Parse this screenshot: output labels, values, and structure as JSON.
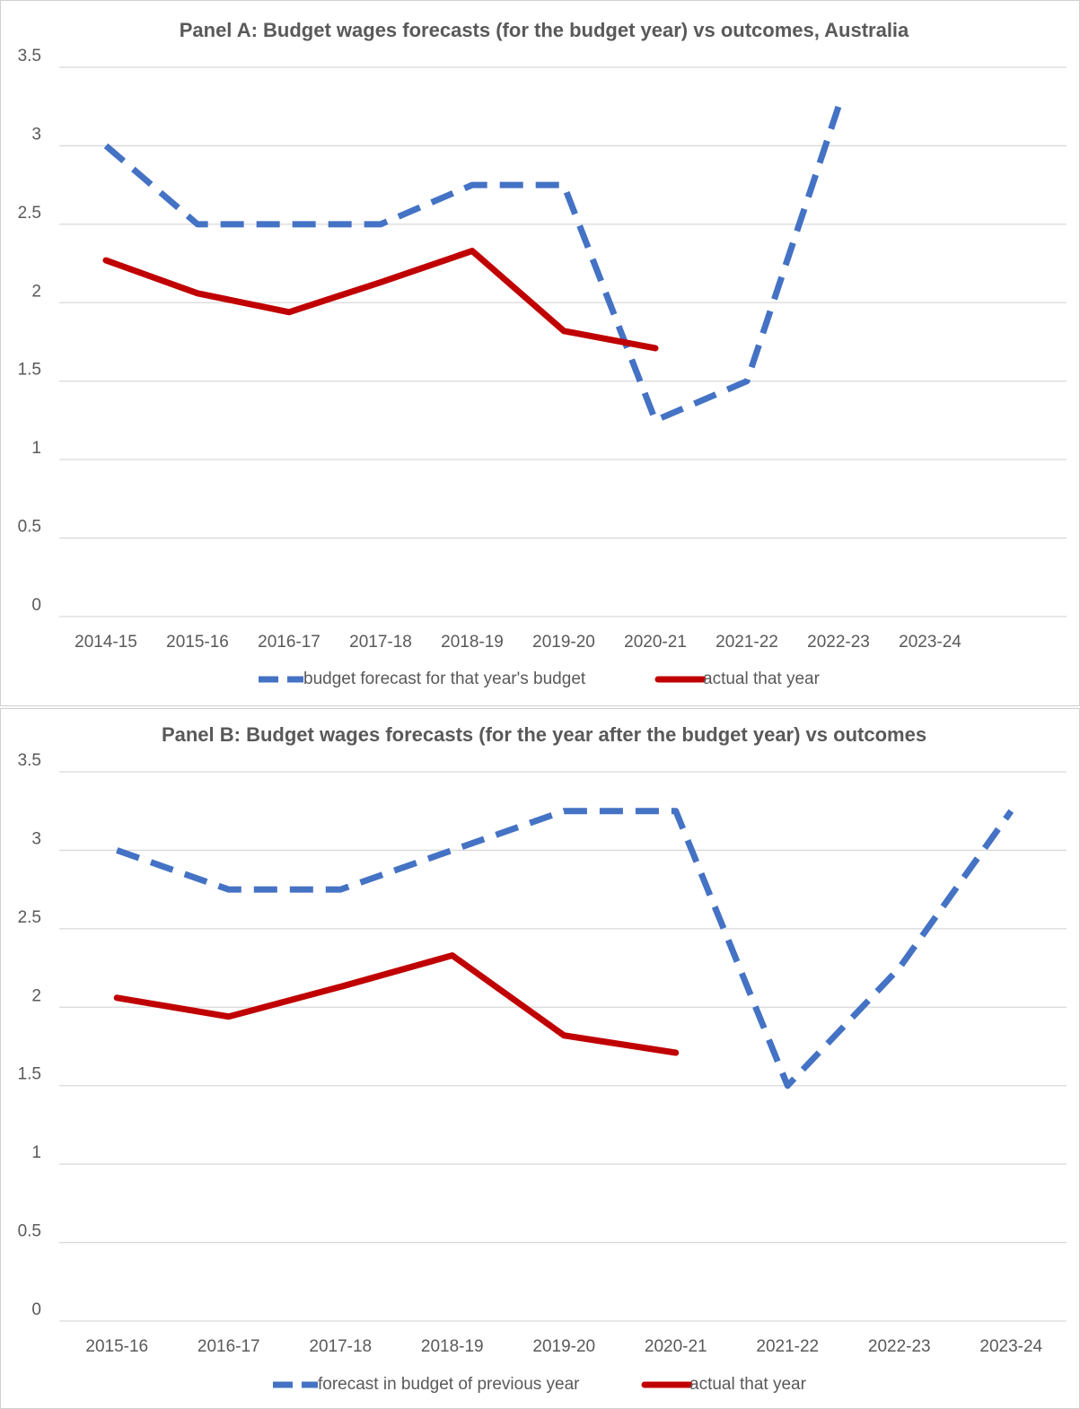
{
  "chart_data": [
    {
      "type": "line",
      "title": "Panel A: Budget wages forecasts (for the budget year) vs outcomes, Australia",
      "categories": [
        "2014-15",
        "2015-16",
        "2016-17",
        "2017-18",
        "2018-19",
        "2019-20",
        "2020-21",
        "2021-22",
        "2022-23",
        "2023-24"
      ],
      "series": [
        {
          "name": "budget forecast for that year's budget",
          "color": "#4472c4",
          "dashed": true,
          "values": [
            3,
            2.5,
            2.5,
            2.5,
            2.75,
            2.75,
            1.25,
            1.5,
            3.25,
            null
          ]
        },
        {
          "name": "actual that year",
          "color": "#c00000",
          "dashed": false,
          "values": [
            2.27,
            2.06,
            1.94,
            2.13,
            2.33,
            1.82,
            1.71,
            null,
            null,
            null
          ]
        }
      ],
      "ylim": [
        0,
        3.5
      ],
      "yticks": [
        0,
        0.5,
        1,
        1.5,
        2,
        2.5,
        3,
        3.5
      ],
      "grid": true,
      "legend": "bottom"
    },
    {
      "type": "line",
      "title": "Panel B: Budget wages forecasts (for the year after the budget year) vs outcomes",
      "categories": [
        "2015-16",
        "2016-17",
        "2017-18",
        "2018-19",
        "2019-20",
        "2020-21",
        "2021-22",
        "2022-23",
        "2023-24"
      ],
      "series": [
        {
          "name": "forecast in budget of previous year",
          "color": "#4472c4",
          "dashed": true,
          "values": [
            3,
            2.75,
            2.75,
            3,
            3.25,
            3.25,
            1.5,
            2.25,
            3.25
          ]
        },
        {
          "name": "actual that year",
          "color": "#c00000",
          "dashed": false,
          "values": [
            2.06,
            1.94,
            2.13,
            2.33,
            1.82,
            1.71,
            null,
            null,
            null
          ]
        }
      ],
      "ylim": [
        0,
        3.5
      ],
      "yticks": [
        0,
        0.5,
        1,
        1.5,
        2,
        2.5,
        3,
        3.5
      ],
      "grid": true,
      "legend": "bottom"
    }
  ]
}
